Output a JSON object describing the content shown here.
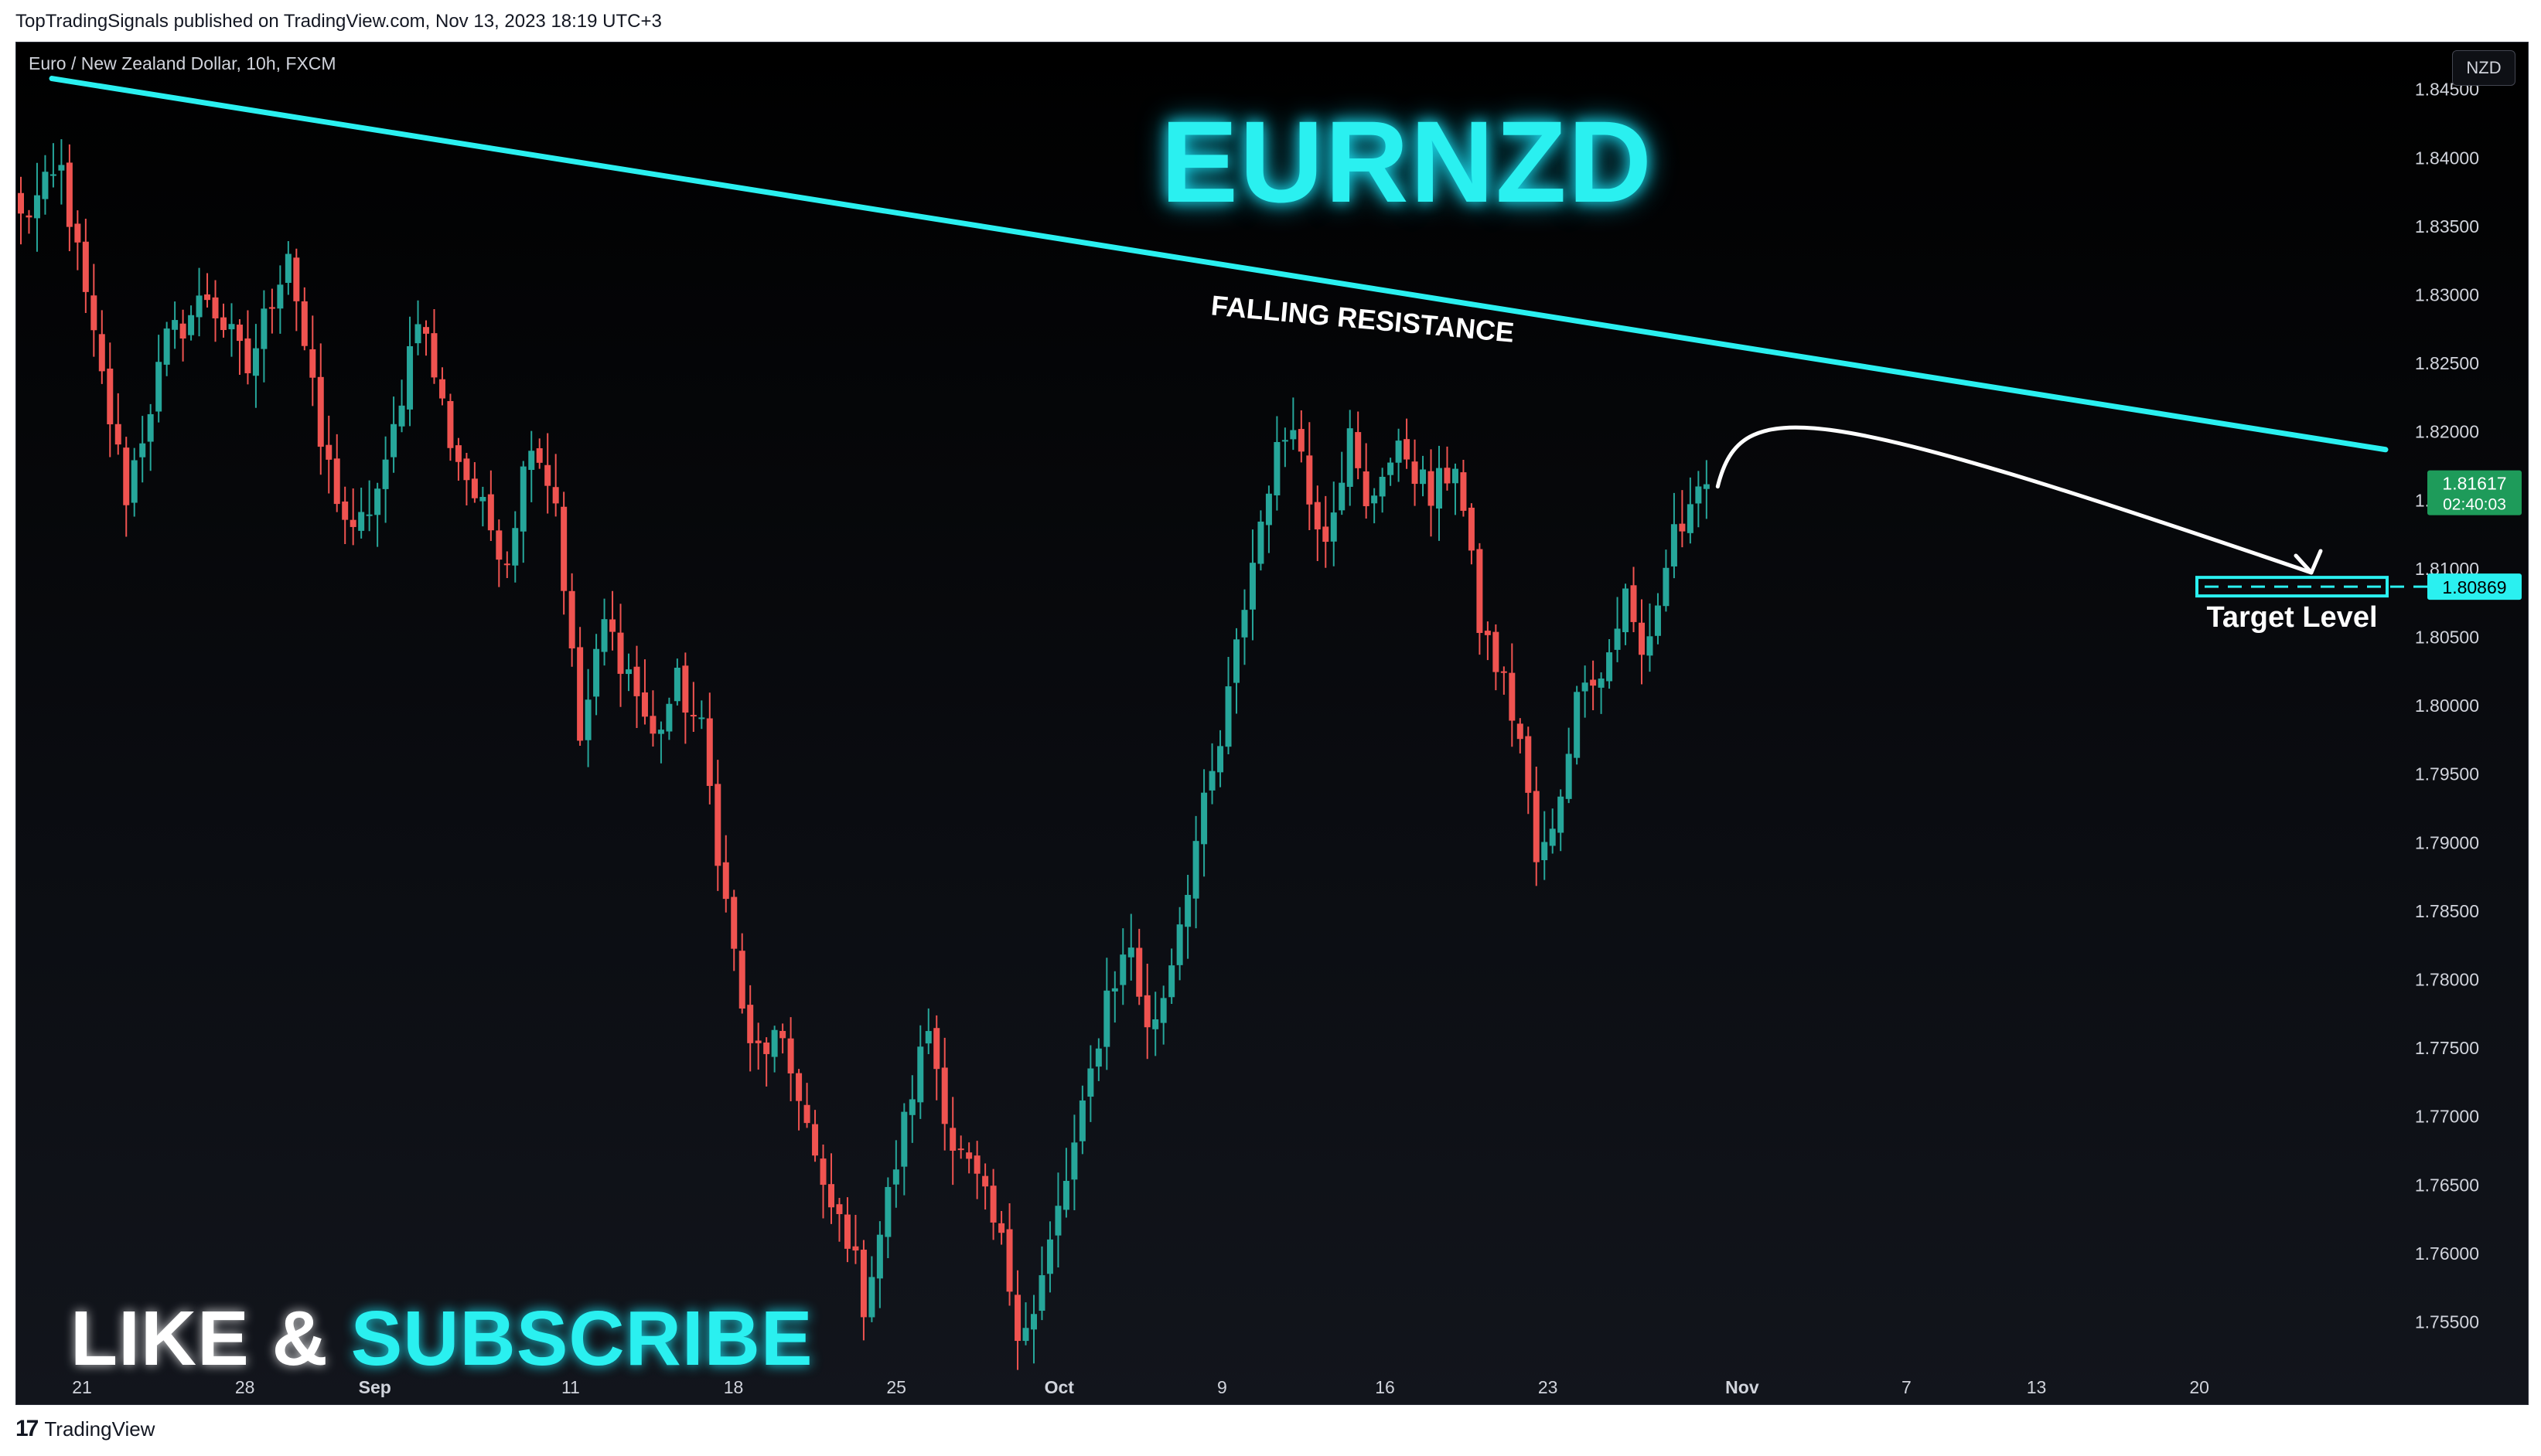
{
  "header": {
    "publish_line": "TopTradingSignals published on TradingView.com, Nov 13, 2023 18:19 UTC+3"
  },
  "legend": {
    "symbol_line": "Euro / New Zealand Dollar, 10h, FXCM",
    "currency_button": "NZD"
  },
  "overlay": {
    "title": "EURNZD",
    "cta_white": "LIKE & ",
    "cta_cyan": "SUBSCRIBE"
  },
  "footer": {
    "brand": "TradingView",
    "logo_glyph": "17"
  },
  "colors": {
    "up": "#26a69a",
    "down": "#ef5350",
    "accent": "#2af0f0",
    "background": "#000000",
    "axis_text": "#d1d4dc",
    "price_label_green": "#1e9b5a"
  },
  "chart_data": {
    "type": "candlestick",
    "title": "EURNZD",
    "timeframe": "10h",
    "x_tick_labels": [
      "21",
      "28",
      "Sep",
      "11",
      "18",
      "25",
      "Oct",
      "9",
      "16",
      "23",
      "Nov",
      "7",
      "13",
      "20"
    ],
    "y_tick_labels": [
      "1.84500",
      "1.84000",
      "1.83500",
      "1.83000",
      "1.82500",
      "1.82000",
      "1.81500",
      "1.81000",
      "1.80500",
      "1.80000",
      "1.79500",
      "1.79000",
      "1.78500",
      "1.78000",
      "1.77500",
      "1.77000",
      "1.76500",
      "1.76000",
      "1.75500"
    ],
    "y_ticks": [
      1.845,
      1.84,
      1.835,
      1.83,
      1.825,
      1.82,
      1.815,
      1.81,
      1.805,
      1.8,
      1.795,
      1.79,
      1.785,
      1.78,
      1.775,
      1.77,
      1.765,
      1.76,
      1.755
    ],
    "ylim": [
      1.7517,
      1.8482
    ],
    "close_path": [
      [
        0,
        1.8355
      ],
      [
        5,
        1.839
      ],
      [
        9,
        1.8265
      ],
      [
        13,
        1.8155
      ],
      [
        18,
        1.8265
      ],
      [
        23,
        1.83
      ],
      [
        28,
        1.8245
      ],
      [
        33,
        1.8335
      ],
      [
        37,
        1.819
      ],
      [
        41,
        1.812
      ],
      [
        45,
        1.817
      ],
      [
        49,
        1.829
      ],
      [
        53,
        1.8195
      ],
      [
        57,
        1.814
      ],
      [
        60,
        1.811
      ],
      [
        63,
        1.82
      ],
      [
        66,
        1.815
      ],
      [
        69,
        1.7975
      ],
      [
        72,
        1.806
      ],
      [
        75,
        1.8025
      ],
      [
        78,
        1.7975
      ],
      [
        81,
        1.8015
      ],
      [
        84,
        1.798
      ],
      [
        87,
        1.7855
      ],
      [
        90,
        1.7745
      ],
      [
        93,
        1.7755
      ],
      [
        96,
        1.772
      ],
      [
        99,
        1.764
      ],
      [
        102,
        1.7615
      ],
      [
        104,
        1.7565
      ],
      [
        107,
        1.764
      ],
      [
        110,
        1.772
      ],
      [
        112,
        1.7765
      ],
      [
        115,
        1.768
      ],
      [
        118,
        1.765
      ],
      [
        121,
        1.7605
      ],
      [
        123,
        1.755
      ],
      [
        125,
        1.7555
      ],
      [
        128,
        1.763
      ],
      [
        131,
        1.77
      ],
      [
        134,
        1.779
      ],
      [
        137,
        1.7825
      ],
      [
        139,
        1.776
      ],
      [
        141,
        1.779
      ],
      [
        145,
        1.79
      ],
      [
        148,
        1.797
      ],
      [
        151,
        1.8075
      ],
      [
        154,
        1.8165
      ],
      [
        157,
        1.8215
      ],
      [
        159,
        1.815
      ],
      [
        161,
        1.813
      ],
      [
        164,
        1.8195
      ],
      [
        166,
        1.814
      ],
      [
        168,
        1.8175
      ],
      [
        171,
        1.8185
      ],
      [
        174,
        1.815
      ],
      [
        177,
        1.818
      ],
      [
        180,
        1.806
      ],
      [
        183,
        1.8015
      ],
      [
        185,
        1.7975
      ],
      [
        187,
        1.7885
      ],
      [
        189,
        1.7905
      ],
      [
        191,
        1.7975
      ],
      [
        193,
        1.803
      ],
      [
        195,
        1.802
      ],
      [
        198,
        1.808
      ],
      [
        200,
        1.8035
      ],
      [
        202,
        1.8075
      ],
      [
        204,
        1.813
      ],
      [
        206,
        1.8135
      ],
      [
        208,
        1.8161
      ]
    ],
    "candle_count": 209,
    "last_price": "1.81617",
    "countdown": "02:40:03",
    "target_price": "1.80869",
    "target_value": 1.80869,
    "resistance_line": {
      "start": [
        0,
        1.8458
      ],
      "end": [
        242,
        1.8187
      ]
    },
    "projection_path": [
      [
        209,
        1.816
      ],
      [
        214,
        1.82
      ],
      [
        229,
        1.8087
      ]
    ],
    "annotations": {
      "resistance_label": "FALLING RESISTANCE",
      "target_label": "Target Level"
    },
    "grid": false
  }
}
